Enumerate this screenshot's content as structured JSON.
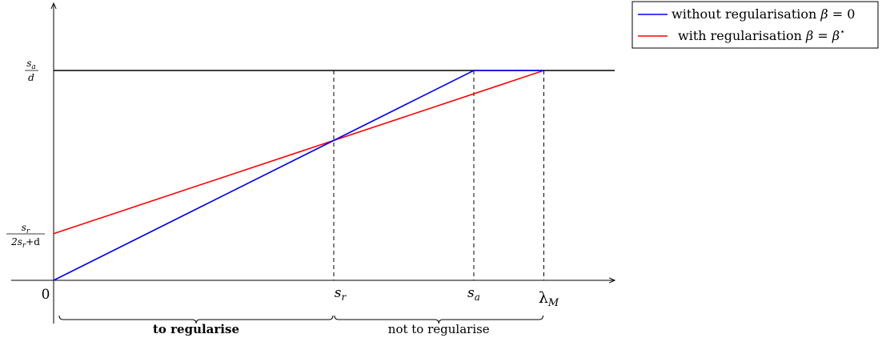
{
  "chart_data": {
    "type": "line",
    "title": "",
    "xlabel": "",
    "ylabel": "",
    "x_ticks": {
      "origin": "0",
      "s_r": {
        "base": "s",
        "sub": "r"
      },
      "s_a": {
        "base": "s",
        "sub": "a"
      },
      "lambda_M": {
        "base": "λ",
        "sub": "M"
      }
    },
    "x_values": {
      "origin": 0,
      "s_r": 4,
      "s_a": 6,
      "lambda_M": 7
    },
    "y_ticks": {
      "top": {
        "num": "s",
        "num_sub": "a",
        "den": "d"
      },
      "intercept": {
        "num": "s",
        "num_sub": "r",
        "den": "2s",
        "den_sub": "r",
        "den_tail": "+d"
      }
    },
    "y_values": {
      "top": 3,
      "intercept": 0.667
    },
    "series": [
      {
        "name": "without regularisation β = 0",
        "color": "#0000ff",
        "points": [
          [
            0,
            0
          ],
          [
            6,
            3
          ],
          [
            7,
            3
          ]
        ]
      },
      {
        "name": "with regularisation β = β*",
        "color": "#ff0000",
        "points": [
          [
            0,
            0.667
          ],
          [
            7,
            3
          ]
        ]
      }
    ],
    "legend": {
      "placement": "top-right",
      "entries": [
        {
          "prefix": "without regularisation ",
          "greek": "β",
          "eq": " = 0",
          "color": "#0000ff"
        },
        {
          "prefix": "with regularisation ",
          "greek": "β",
          "eq": " = ",
          "greek2": "β",
          "sup": "⋆",
          "color": "#ff0000"
        }
      ]
    },
    "braces": [
      {
        "label": "to regularise",
        "from": "origin",
        "to": "s_r",
        "bold": true
      },
      {
        "label": "not to regularise",
        "from": "s_r",
        "to": "lambda_M",
        "bold": false
      }
    ],
    "grid": false
  }
}
